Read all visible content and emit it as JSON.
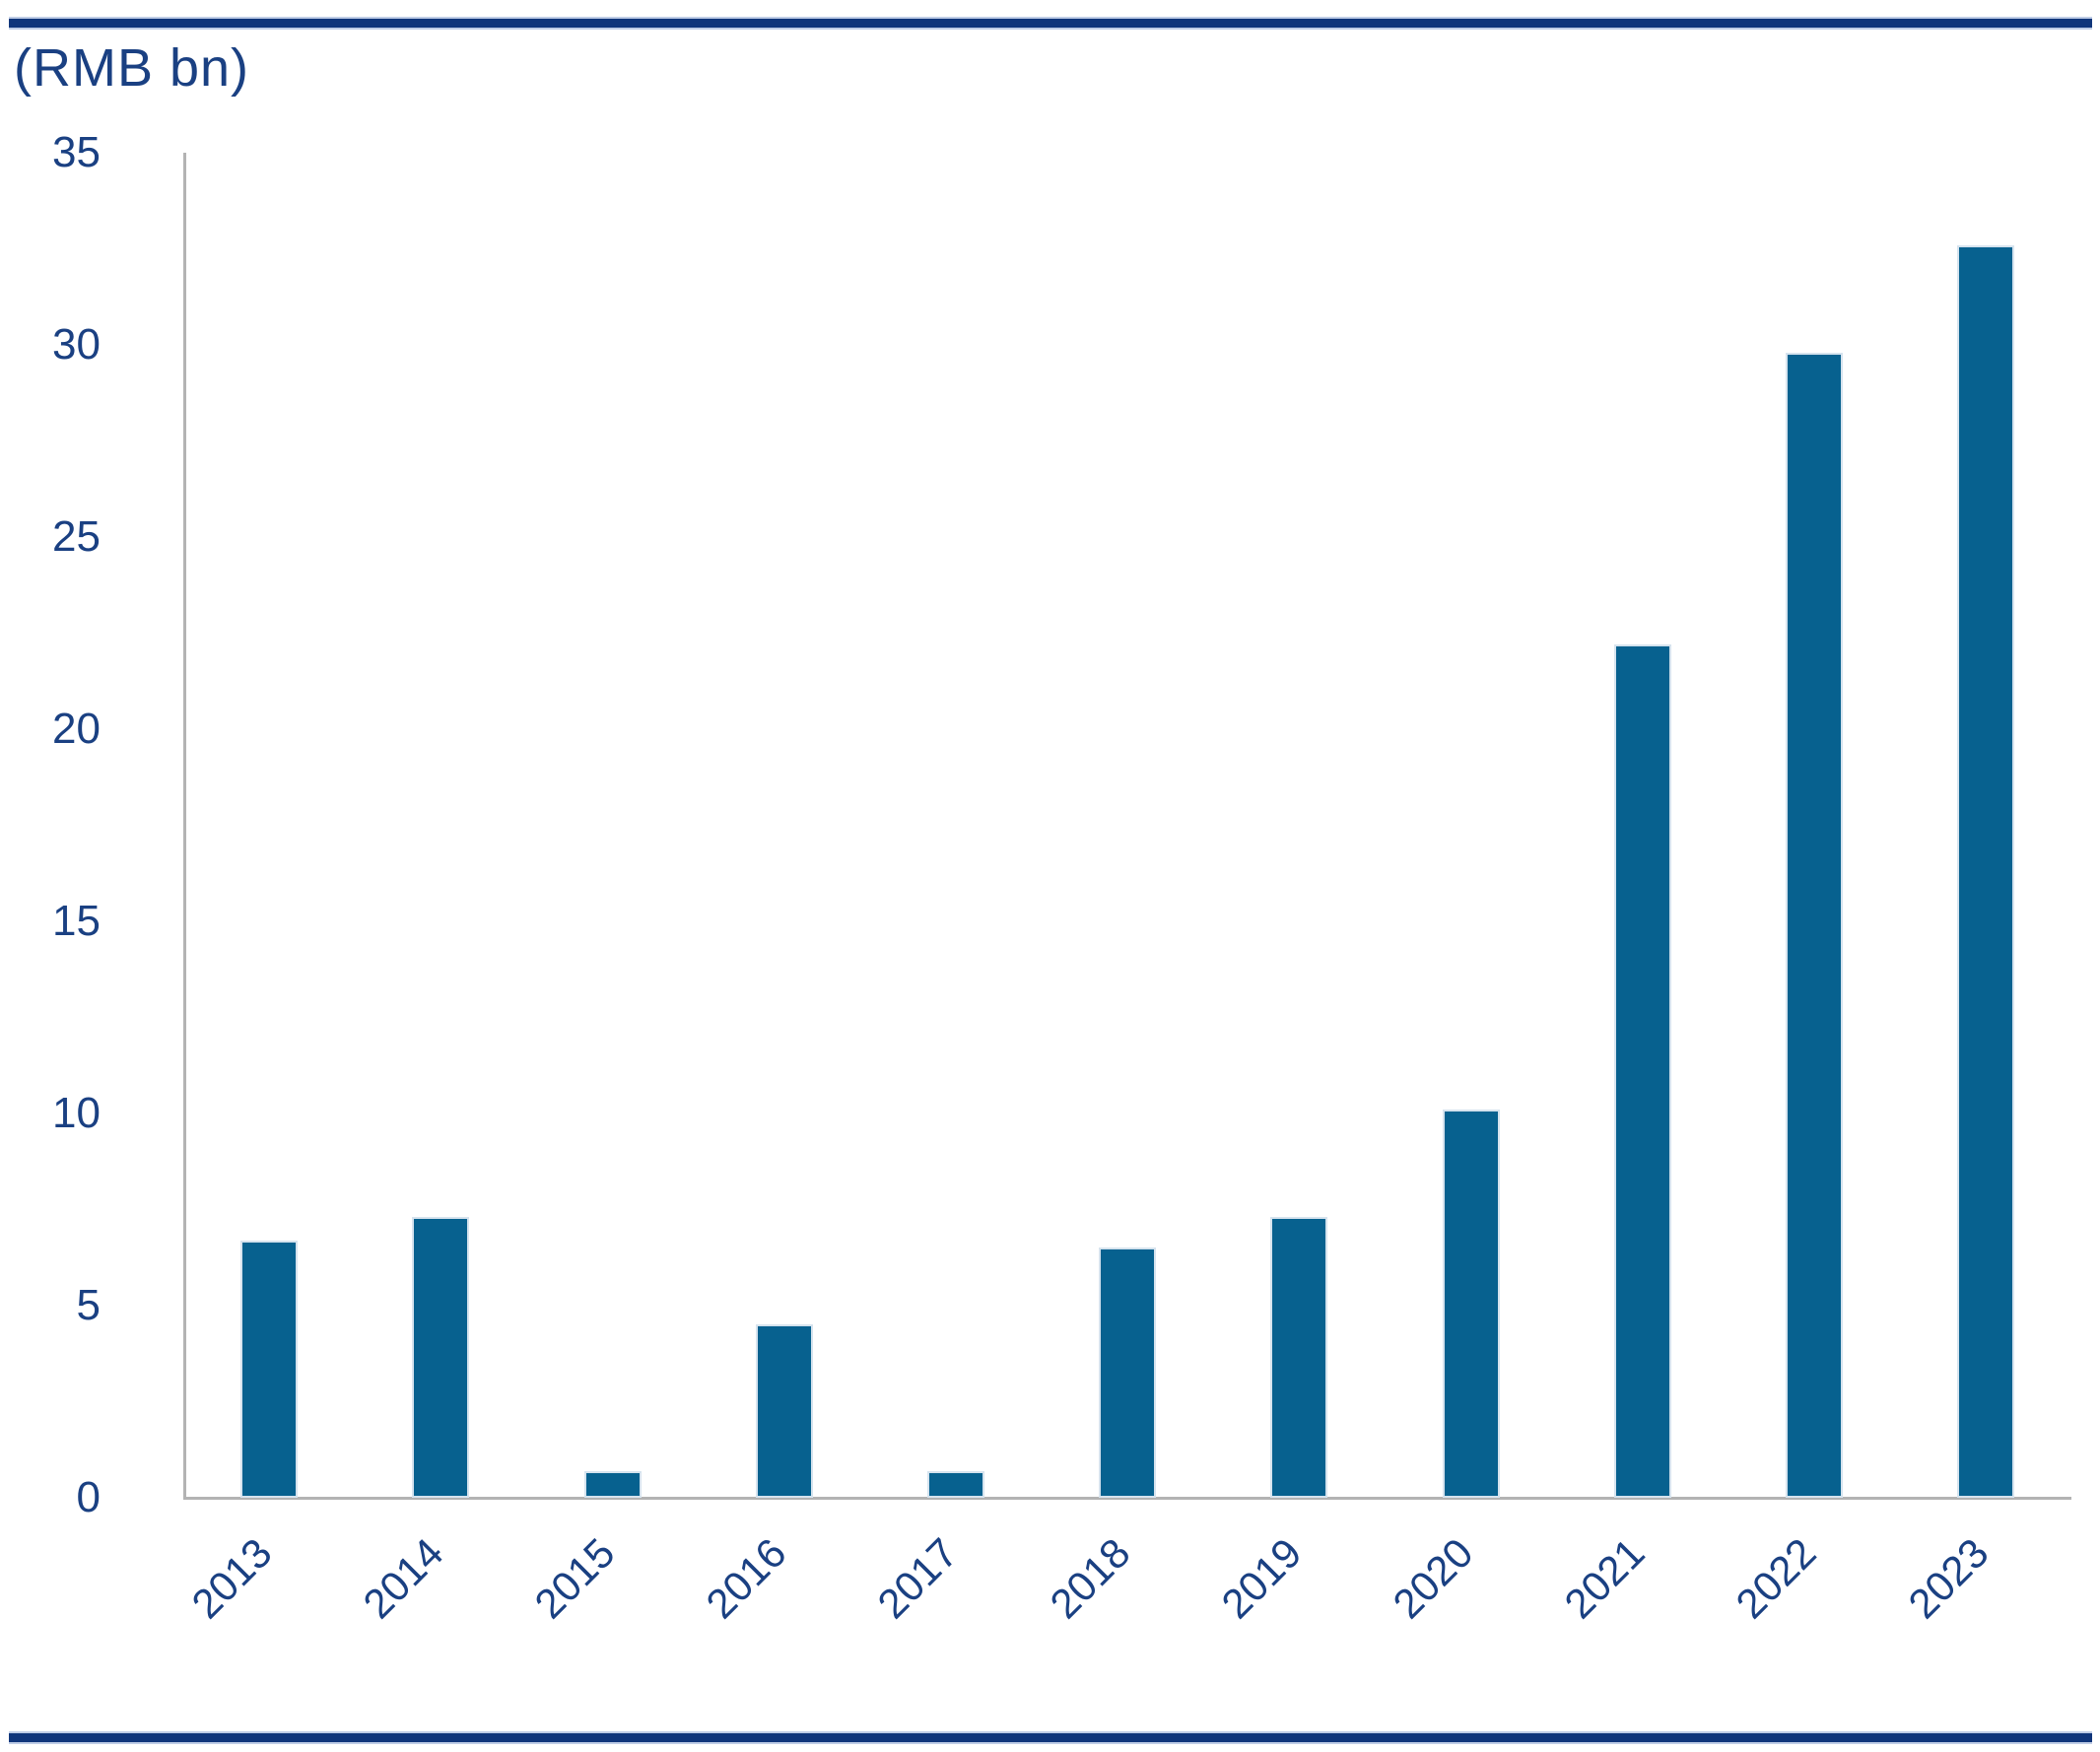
{
  "chart_data": {
    "type": "bar",
    "title": "",
    "unit_label": "(RMB bn)",
    "categories": [
      "2013",
      "2014",
      "2015",
      "2016",
      "2017",
      "2018",
      "2019",
      "2020",
      "2021",
      "2022",
      "2023"
    ],
    "values": [
      6.7,
      7.3,
      0.7,
      4.5,
      0.7,
      6.5,
      7.3,
      10.1,
      22.2,
      29.8,
      32.6
    ],
    "series_name": "",
    "xlabel": "",
    "ylabel": "(RMB bn)",
    "ylim": [
      0,
      35
    ],
    "y_ticks": [
      0,
      5,
      10,
      15,
      20,
      25,
      30,
      35
    ],
    "grid": false,
    "legend_position": "none",
    "bar_color": "#07618F",
    "bar_border_color": "#D6E3EE",
    "axis_line_color": "#B3B3B3",
    "tick_text_color": "#1A4082",
    "frame_rule_color": "#10367B"
  }
}
